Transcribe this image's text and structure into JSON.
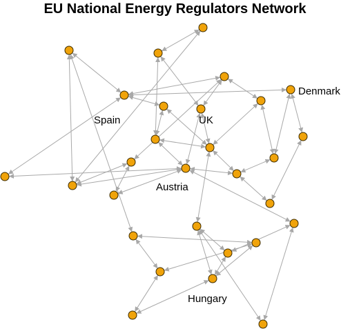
{
  "title": "EU National Energy Regulators Network",
  "labels": {
    "spain": "Spain",
    "uk": "UK",
    "denmark": "Denmark",
    "austria": "Austria",
    "hungary": "Hungary"
  },
  "colors": {
    "node_fill": "#f0a30a",
    "node_stroke": "#3a2a00",
    "edge": "#a8a8a8"
  },
  "graph": {
    "node_count": 29,
    "edges": [
      [
        "n1",
        "n21"
      ],
      [
        "n1",
        "n2"
      ],
      [
        "n2",
        "n9"
      ],
      [
        "n2",
        "n18"
      ],
      [
        "n3",
        "n6"
      ],
      [
        "n3",
        "n4"
      ],
      [
        "n4",
        "n8"
      ],
      [
        "n4",
        "n10"
      ],
      [
        "n5",
        "n2"
      ],
      [
        "n5",
        "n14"
      ],
      [
        "n6",
        "n14"
      ],
      [
        "n6",
        "n1"
      ],
      [
        "n7",
        "n11"
      ],
      [
        "n7",
        "n6"
      ],
      [
        "n8",
        "n14"
      ],
      [
        "n8",
        "n15"
      ],
      [
        "n9",
        "n15"
      ],
      [
        "n10",
        "n14"
      ],
      [
        "n10",
        "n15"
      ],
      [
        "n11",
        "n14"
      ],
      [
        "n12",
        "n2"
      ],
      [
        "n12",
        "n13"
      ],
      [
        "n13",
        "n15"
      ],
      [
        "n13",
        "n17"
      ],
      [
        "n14",
        "n16"
      ],
      [
        "n15",
        "n16"
      ],
      [
        "n16",
        "n17"
      ],
      [
        "n17",
        "n18"
      ],
      [
        "n18",
        "n19"
      ],
      [
        "n19",
        "n20"
      ],
      [
        "n20",
        "n16"
      ],
      [
        "n21",
        "n22"
      ],
      [
        "n22",
        "n23"
      ],
      [
        "n23",
        "n24"
      ],
      [
        "n24",
        "n27"
      ],
      [
        "n25",
        "n24"
      ],
      [
        "n26",
        "n24"
      ],
      [
        "n26",
        "n22"
      ],
      [
        "n27",
        "n28"
      ],
      [
        "n27",
        "n25"
      ],
      [
        "n28",
        "n29"
      ],
      [
        "n28",
        "n14"
      ],
      [
        "n29",
        "n25"
      ],
      [
        "n25",
        "n15"
      ],
      [
        "n26",
        "n21"
      ],
      [
        "n9",
        "n8"
      ],
      [
        "n7",
        "n12"
      ],
      [
        "n10",
        "n12"
      ]
    ]
  }
}
